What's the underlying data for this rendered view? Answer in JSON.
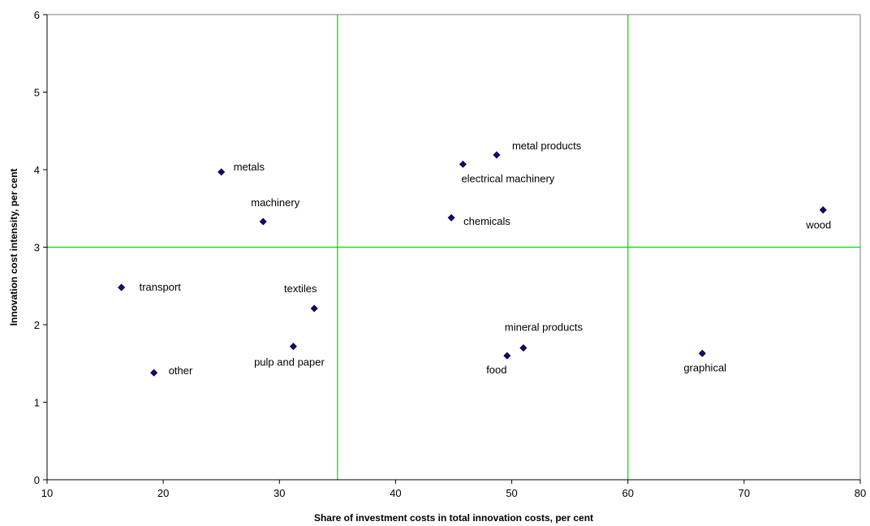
{
  "chart_data": {
    "type": "scatter",
    "title": "",
    "xlabel": "Share of investment costs in total innovation costs, per cent",
    "ylabel": "Innovation cost intensity, per cent",
    "xlim": [
      10,
      80
    ],
    "ylim": [
      0,
      6
    ],
    "xticks": [
      "10",
      "20",
      "30",
      "40",
      "50",
      "60",
      "70",
      "80"
    ],
    "yticks": [
      "0",
      "1",
      "2",
      "3",
      "4",
      "5",
      "6"
    ],
    "grid": false,
    "reference_lines": {
      "x": [
        35,
        60
      ],
      "y": [
        3
      ]
    },
    "points": [
      {
        "label": "metals",
        "x": 25.0,
        "y": 3.97
      },
      {
        "label": "machinery",
        "x": 28.6,
        "y": 3.33
      },
      {
        "label": "transport",
        "x": 16.4,
        "y": 2.48
      },
      {
        "label": "other",
        "x": 19.2,
        "y": 1.38
      },
      {
        "label": "textiles",
        "x": 33.0,
        "y": 2.21
      },
      {
        "label": "pulp and paper",
        "x": 31.2,
        "y": 1.72
      },
      {
        "label": "metal products",
        "x": 48.7,
        "y": 4.19
      },
      {
        "label": "electrical machinery",
        "x": 45.8,
        "y": 4.07
      },
      {
        "label": "chemicals",
        "x": 44.8,
        "y": 3.38
      },
      {
        "label": "mineral  products",
        "x": 51.0,
        "y": 1.7
      },
      {
        "label": "food",
        "x": 49.6,
        "y": 1.6
      },
      {
        "label": "graphical",
        "x": 66.4,
        "y": 1.63
      },
      {
        "label": "wood",
        "x": 76.8,
        "y": 3.48
      }
    ]
  },
  "colors": {
    "marker_fill": "#0a0a8c",
    "marker_stroke": "#000000",
    "reference_line": "#00d800",
    "axis": "#000000"
  }
}
